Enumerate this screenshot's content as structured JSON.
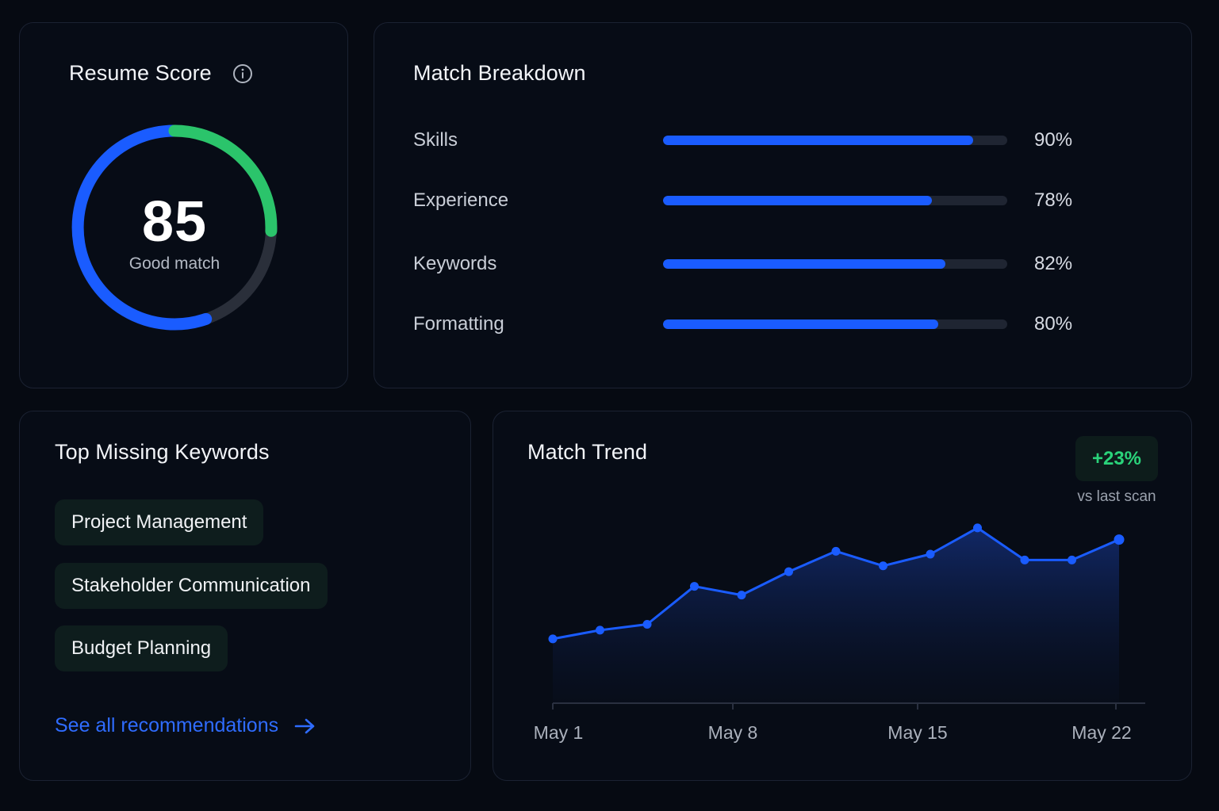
{
  "score_card": {
    "title": "Resume Score",
    "info_icon": "info-icon",
    "score": 85,
    "max_score": 100,
    "label": "Good match",
    "colors": {
      "progress": "#1a5cff",
      "accent": "#2bc46b",
      "track": "#2a2f3a"
    }
  },
  "breakdown": {
    "title": "Match Breakdown",
    "items": [
      {
        "label": "Skills",
        "value": 90,
        "display": "90%"
      },
      {
        "label": "Experience",
        "value": 78,
        "display": "78%"
      },
      {
        "label": "Keywords",
        "value": 82,
        "display": "82%"
      },
      {
        "label": "Formatting",
        "value": 80,
        "display": "80%"
      }
    ]
  },
  "keywords": {
    "title": "Top Missing Keywords",
    "chips": [
      "Project Management",
      "Stakeholder Communication",
      "Budget Planning"
    ],
    "link_label": "See all recommendations",
    "link_icon": "arrow-right-icon"
  },
  "trend": {
    "title": "Match Trend",
    "delta": "+23%",
    "delta_caption": "vs last scan",
    "chart_data": {
      "type": "area",
      "x_ticks": [
        "May 1",
        "May 8",
        "May 15",
        "May 22"
      ],
      "values": [
        62,
        65,
        67,
        80,
        77,
        85,
        92,
        87,
        91,
        100,
        89,
        89,
        96
      ],
      "ylim": [
        40,
        110
      ],
      "grid": false,
      "color": "#1a5cff"
    }
  }
}
